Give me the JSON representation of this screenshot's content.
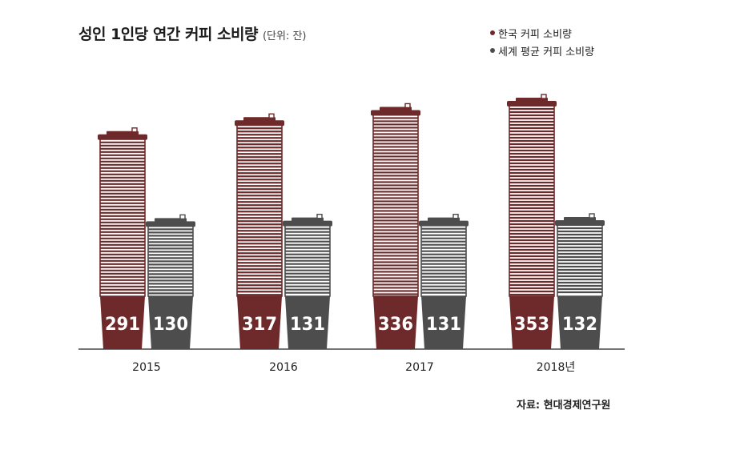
{
  "header": {
    "title": "성인 1인당 연간 커피 소비량",
    "unit": "(단위: 잔)"
  },
  "legend": [
    {
      "label": "한국 커피 소비량",
      "color": "#6e2a2a"
    },
    {
      "label": "세계 평균 커피 소비량",
      "color": "#4d4d4d"
    }
  ],
  "source": "자료: 현대경제연구원",
  "chart_data": {
    "type": "bar",
    "categories": [
      "2015",
      "2016",
      "2017",
      "2018년"
    ],
    "series": [
      {
        "name": "한국 커피 소비량",
        "values": [
          291,
          317,
          336,
          353
        ],
        "color": "#6e2a2a"
      },
      {
        "name": "세계 평균 커피 소비량",
        "values": [
          130,
          131,
          131,
          132
        ],
        "color": "#4d4d4d"
      }
    ],
    "title": "성인 1인당 연간 커피 소비량",
    "unit": "(단위: 잔)",
    "grid": false,
    "legend_position": "top-right"
  }
}
